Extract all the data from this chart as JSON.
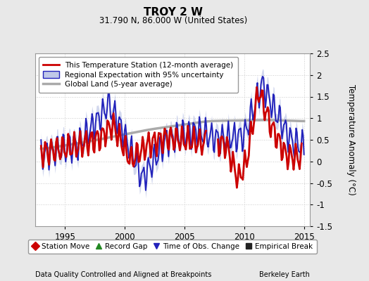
{
  "title": "TROY 2 W",
  "subtitle": "31.790 N, 86.000 W (United States)",
  "ylabel": "Temperature Anomaly (°C)",
  "xlabel_left": "Data Quality Controlled and Aligned at Breakpoints",
  "xlabel_right": "Berkeley Earth",
  "xlim": [
    1992.5,
    2015.5
  ],
  "ylim": [
    -1.5,
    2.5
  ],
  "yticks": [
    -1.5,
    -1.0,
    -0.5,
    0.0,
    0.5,
    1.0,
    1.5,
    2.0,
    2.5
  ],
  "xticks": [
    1995,
    2000,
    2005,
    2010,
    2015
  ],
  "bg_color": "#e8e8e8",
  "plot_bg_color": "#ffffff",
  "grid_color": "#cccccc",
  "station_line_color": "#cc0000",
  "regional_line_color": "#2222bb",
  "regional_fill_color": "#c0c8e8",
  "global_line_color": "#aaaaaa",
  "legend_items": [
    {
      "label": "This Temperature Station (12-month average)",
      "color": "#cc0000",
      "lw": 2.0
    },
    {
      "label": "Regional Expectation with 95% uncertainty",
      "color": "#2222bb",
      "fill": "#c0c8e8",
      "lw": 1.5
    },
    {
      "label": "Global Land (5-year average)",
      "color": "#aaaaaa",
      "lw": 2.5
    }
  ],
  "bottom_legend": [
    {
      "label": "Station Move",
      "color": "#cc0000",
      "marker": "D"
    },
    {
      "label": "Record Gap",
      "color": "#228822",
      "marker": "^"
    },
    {
      "label": "Time of Obs. Change",
      "color": "#2222bb",
      "marker": "v"
    },
    {
      "label": "Empirical Break",
      "color": "#222222",
      "marker": "s"
    }
  ]
}
